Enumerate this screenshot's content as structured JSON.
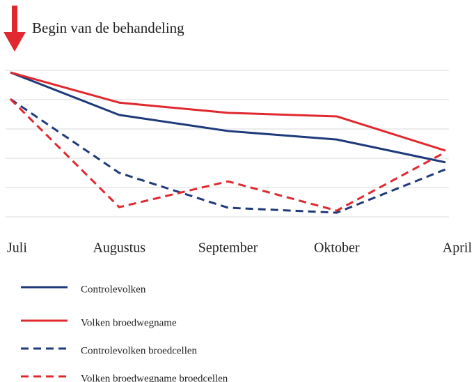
{
  "chart_data": {
    "type": "line",
    "annotation": "Begin van de behandeling",
    "categories": [
      "Juli",
      "Augustus",
      "September",
      "Oktober",
      "April"
    ],
    "ylim": [
      0,
      5
    ],
    "yticks": [
      0,
      1,
      2,
      3,
      4,
      5
    ],
    "grid": true,
    "series": [
      {
        "name": "Controlevolken",
        "color": "#1f3a7a",
        "dashed": false,
        "values": [
          4.93,
          3.48,
          2.93,
          2.64,
          1.86
        ]
      },
      {
        "name": "Volken broedwegname",
        "color": "#e0282e",
        "dashed": false,
        "values": [
          4.93,
          3.9,
          3.55,
          3.43,
          2.26
        ]
      },
      {
        "name": "Controlevolken broedcellen",
        "color": "#1f3a7a",
        "dashed": true,
        "values": [
          4.02,
          1.5,
          0.31,
          0.14,
          1.62
        ]
      },
      {
        "name": "Volken broedwegname broedcellen",
        "color": "#e0282e",
        "dashed": true,
        "values": [
          4.02,
          0.33,
          1.21,
          0.21,
          2.21
        ]
      }
    ]
  }
}
